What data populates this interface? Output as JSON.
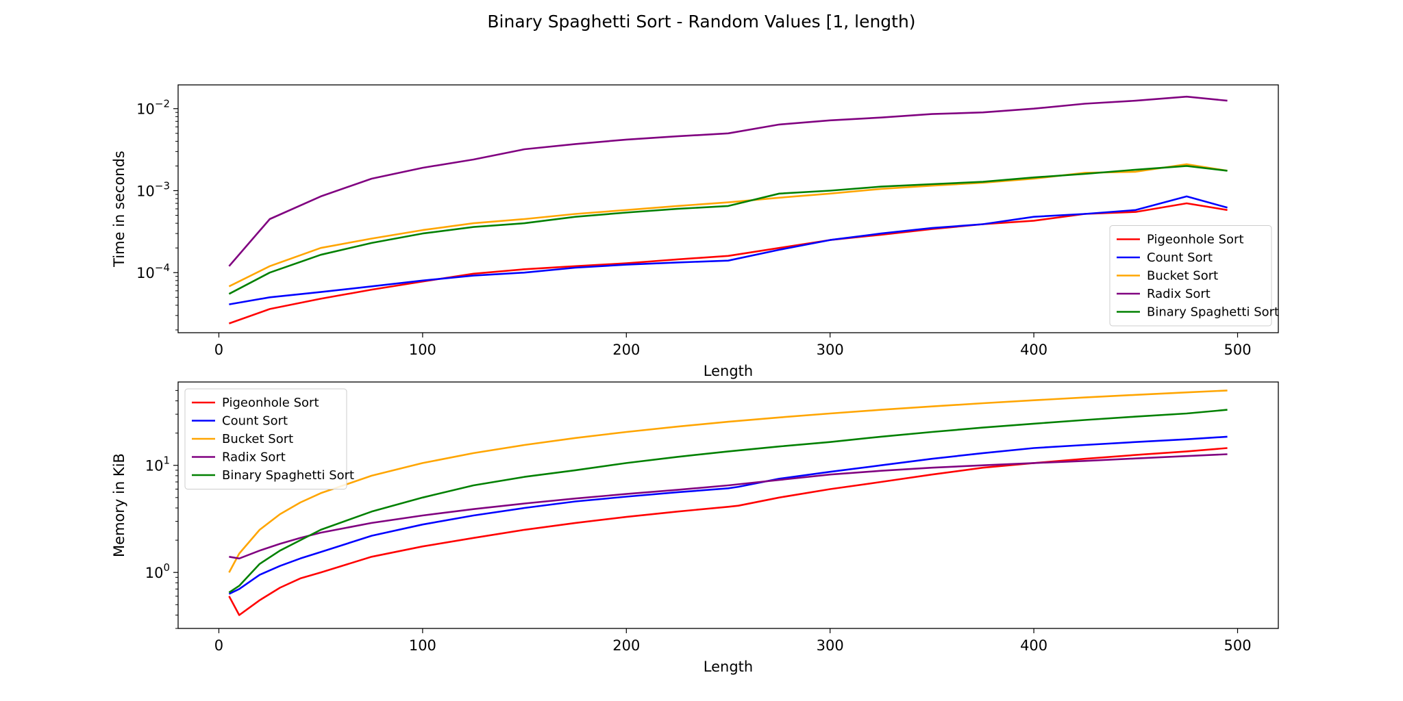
{
  "figure": {
    "title": "Binary Spaghetti Sort - Random Values [1, length)"
  },
  "colors": {
    "pigeonhole": "#ff0000",
    "count": "#0000ff",
    "bucket": "#ffa500",
    "radix": "#800080",
    "spaghetti": "#008000"
  },
  "chart_data": [
    {
      "type": "line",
      "xlabel": "Length",
      "ylabel": "Time in seconds",
      "yscale": "log",
      "xlim": [
        -20,
        520
      ],
      "ylim": [
        1.85e-05,
        0.0195
      ],
      "xticks": [
        0,
        100,
        200,
        300,
        400,
        500
      ],
      "yticks": [
        {
          "value": 0.0001,
          "base": "10",
          "exp": "−4"
        },
        {
          "value": 0.001,
          "base": "10",
          "exp": "−3"
        },
        {
          "value": 0.01,
          "base": "10",
          "exp": "−2"
        }
      ],
      "grid": false,
      "legend": "lower right",
      "series": [
        {
          "name": "Pigeonhole Sort",
          "color": "#ff0000",
          "x": [
            5,
            25,
            50,
            75,
            100,
            125,
            150,
            175,
            200,
            225,
            250,
            275,
            300,
            325,
            350,
            375,
            400,
            425,
            450,
            475,
            495
          ],
          "y": [
            2.4e-05,
            3.6e-05,
            4.8e-05,
            6.2e-05,
            7.8e-05,
            9.7e-05,
            0.00011,
            0.00012,
            0.00013,
            0.000145,
            0.00016,
            0.0002,
            0.00025,
            0.00029,
            0.00034,
            0.00039,
            0.00043,
            0.00052,
            0.00055,
            0.0007,
            0.00058
          ]
        },
        {
          "name": "Count Sort",
          "color": "#0000ff",
          "x": [
            5,
            25,
            50,
            75,
            100,
            125,
            150,
            175,
            200,
            225,
            250,
            275,
            300,
            325,
            350,
            375,
            400,
            425,
            450,
            475,
            495
          ],
          "y": [
            4.1e-05,
            5e-05,
            5.8e-05,
            6.8e-05,
            8e-05,
            9.2e-05,
            0.0001,
            0.000115,
            0.000125,
            0.000133,
            0.00014,
            0.00019,
            0.00025,
            0.0003,
            0.00035,
            0.00039,
            0.00048,
            0.00052,
            0.00058,
            0.00085,
            0.00062
          ]
        },
        {
          "name": "Bucket Sort",
          "color": "#ffa500",
          "x": [
            5,
            25,
            50,
            75,
            100,
            125,
            150,
            175,
            200,
            225,
            250,
            275,
            300,
            325,
            350,
            375,
            400,
            425,
            450,
            475,
            495
          ],
          "y": [
            6.8e-05,
            0.00012,
            0.0002,
            0.00026,
            0.00033,
            0.0004,
            0.00045,
            0.00052,
            0.00058,
            0.00065,
            0.00072,
            0.00082,
            0.00092,
            0.00105,
            0.00115,
            0.00125,
            0.0014,
            0.00165,
            0.0017,
            0.0021,
            0.00175
          ]
        },
        {
          "name": "Radix Sort",
          "color": "#800080",
          "x": [
            5,
            25,
            50,
            75,
            100,
            125,
            150,
            175,
            200,
            225,
            250,
            275,
            300,
            325,
            350,
            375,
            400,
            425,
            450,
            475,
            495
          ],
          "y": [
            0.00012,
            0.00045,
            0.00085,
            0.0014,
            0.0019,
            0.0024,
            0.0032,
            0.0037,
            0.0042,
            0.0046,
            0.005,
            0.0064,
            0.0072,
            0.0078,
            0.0086,
            0.009,
            0.01,
            0.0115,
            0.0125,
            0.014,
            0.0125
          ]
        },
        {
          "name": "Binary Spaghetti Sort",
          "color": "#008000",
          "x": [
            5,
            25,
            50,
            75,
            100,
            125,
            150,
            175,
            200,
            225,
            250,
            275,
            300,
            325,
            350,
            375,
            400,
            425,
            450,
            475,
            495
          ],
          "y": [
            5.5e-05,
            0.0001,
            0.000165,
            0.00023,
            0.0003,
            0.00036,
            0.0004,
            0.00048,
            0.00054,
            0.0006,
            0.00065,
            0.00092,
            0.001,
            0.00112,
            0.0012,
            0.00128,
            0.00145,
            0.0016,
            0.0018,
            0.002,
            0.00175
          ]
        }
      ]
    },
    {
      "type": "line",
      "xlabel": "Length",
      "ylabel": "Memory in KiB",
      "yscale": "log",
      "xlim": [
        -20,
        520
      ],
      "ylim": [
        0.3,
        60
      ],
      "xticks": [
        0,
        100,
        200,
        300,
        400,
        500
      ],
      "yticks": [
        {
          "value": 1,
          "base": "10",
          "exp": "0"
        },
        {
          "value": 10,
          "base": "10",
          "exp": "1"
        }
      ],
      "grid": false,
      "legend": "upper left",
      "series": [
        {
          "name": "Pigeonhole Sort",
          "color": "#ff0000",
          "x": [
            5,
            10,
            20,
            30,
            40,
            50,
            75,
            100,
            125,
            150,
            175,
            200,
            225,
            250,
            255,
            275,
            300,
            325,
            350,
            375,
            400,
            425,
            450,
            475,
            495
          ],
          "y": [
            0.6,
            0.4,
            0.55,
            0.72,
            0.88,
            1.0,
            1.4,
            1.75,
            2.1,
            2.5,
            2.9,
            3.3,
            3.7,
            4.1,
            4.2,
            5.0,
            6.0,
            7.0,
            8.2,
            9.5,
            10.5,
            11.5,
            12.5,
            13.5,
            14.5
          ]
        },
        {
          "name": "Count Sort",
          "color": "#0000ff",
          "x": [
            5,
            10,
            20,
            30,
            40,
            50,
            75,
            100,
            125,
            150,
            175,
            200,
            225,
            250,
            255,
            275,
            300,
            325,
            350,
            375,
            400,
            425,
            450,
            475,
            495
          ],
          "y": [
            0.63,
            0.7,
            0.95,
            1.15,
            1.35,
            1.55,
            2.2,
            2.8,
            3.4,
            4.0,
            4.6,
            5.1,
            5.6,
            6.1,
            6.3,
            7.5,
            8.7,
            10.0,
            11.5,
            13.0,
            14.5,
            15.5,
            16.5,
            17.5,
            18.5
          ]
        },
        {
          "name": "Bucket Sort",
          "color": "#ffa500",
          "x": [
            5,
            10,
            20,
            30,
            40,
            50,
            75,
            100,
            125,
            150,
            175,
            200,
            225,
            250,
            275,
            300,
            325,
            350,
            375,
            400,
            425,
            450,
            475,
            495
          ],
          "y": [
            1.0,
            1.5,
            2.5,
            3.5,
            4.5,
            5.5,
            8.0,
            10.5,
            13.0,
            15.5,
            18.0,
            20.5,
            23.0,
            25.5,
            28.0,
            30.5,
            33.0,
            35.5,
            38.0,
            40.5,
            43.0,
            45.5,
            48.0,
            50.0
          ]
        },
        {
          "name": "Radix Sort",
          "color": "#800080",
          "x": [
            5,
            10,
            20,
            30,
            40,
            50,
            75,
            100,
            125,
            150,
            175,
            200,
            225,
            250,
            275,
            300,
            325,
            350,
            375,
            400,
            425,
            450,
            475,
            495
          ],
          "y": [
            1.4,
            1.35,
            1.6,
            1.85,
            2.1,
            2.35,
            2.9,
            3.4,
            3.9,
            4.4,
            4.9,
            5.4,
            5.9,
            6.5,
            7.3,
            8.2,
            8.9,
            9.5,
            10.0,
            10.5,
            11.0,
            11.6,
            12.2,
            12.7
          ]
        },
        {
          "name": "Binary Spaghetti Sort",
          "color": "#008000",
          "x": [
            5,
            10,
            20,
            30,
            40,
            50,
            75,
            100,
            125,
            150,
            175,
            200,
            225,
            250,
            275,
            300,
            325,
            350,
            375,
            400,
            425,
            450,
            475,
            495
          ],
          "y": [
            0.65,
            0.75,
            1.2,
            1.6,
            2.0,
            2.5,
            3.7,
            5.0,
            6.5,
            7.8,
            9.0,
            10.5,
            12.0,
            13.5,
            15.0,
            16.5,
            18.5,
            20.5,
            22.5,
            24.5,
            26.5,
            28.5,
            30.5,
            33.0
          ]
        }
      ]
    }
  ]
}
